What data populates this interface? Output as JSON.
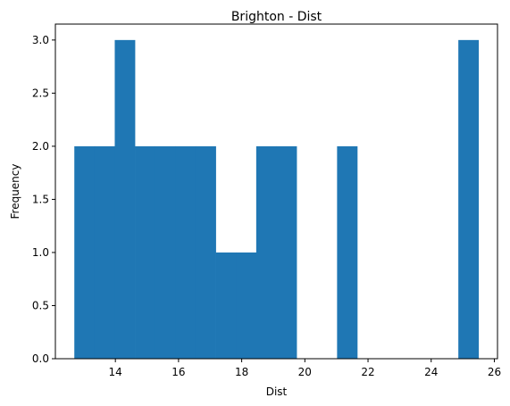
{
  "chart_data": {
    "type": "bar",
    "title": "Brighton - Dist",
    "xlabel": "Dist",
    "ylabel": "Frequency",
    "xlim": [
      12.1,
      26.1
    ],
    "ylim": [
      0,
      3.15
    ],
    "xticks": [
      14,
      16,
      18,
      20,
      22,
      24,
      26
    ],
    "yticks": [
      0.0,
      0.5,
      1.0,
      1.5,
      2.0,
      2.5,
      3.0
    ],
    "ytick_labels": [
      "0.0",
      "0.5",
      "1.0",
      "1.5",
      "2.0",
      "2.5",
      "3.0"
    ],
    "grid": false,
    "bar_color": "#1f77b4",
    "bin_edges": [
      12.7,
      13.34,
      13.98,
      14.62,
      15.26,
      15.9,
      16.54,
      17.18,
      17.82,
      18.46,
      19.1,
      19.74,
      20.38,
      21.02,
      21.66,
      22.3,
      22.94,
      23.58,
      24.22,
      24.86,
      25.5
    ],
    "counts": [
      2,
      2,
      3,
      2,
      2,
      2,
      2,
      1,
      1,
      2,
      2,
      0,
      0,
      2,
      0,
      0,
      0,
      0,
      0,
      3
    ]
  }
}
